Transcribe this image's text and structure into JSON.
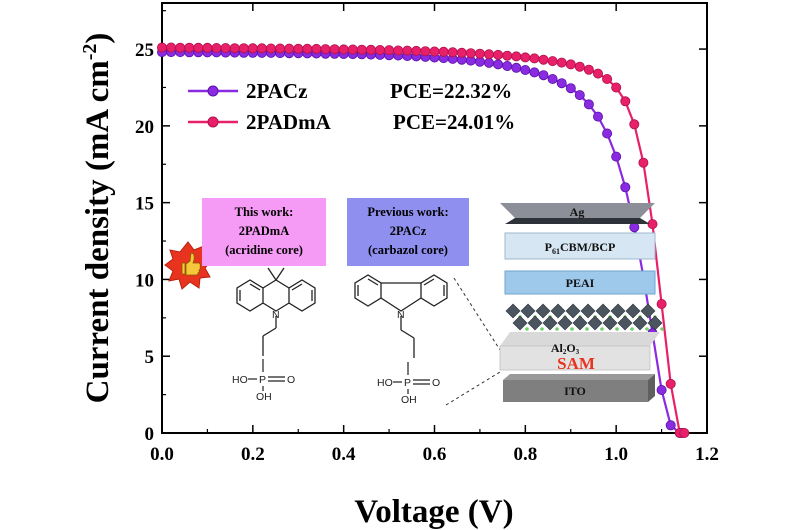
{
  "chart_data": {
    "type": "line",
    "title": "",
    "xlabel": "Voltage (V)",
    "ylabel": "Current density (mA cm",
    "ylabel_sup": "-2",
    "ylabel_close": ")",
    "xlim": [
      0.0,
      1.2
    ],
    "ylim": [
      0,
      28
    ],
    "xticks": [
      0.0,
      0.2,
      0.4,
      0.6,
      0.8,
      1.0,
      1.2
    ],
    "xtick_labels": [
      "0.0",
      "0.2",
      "0.4",
      "0.6",
      "0.8",
      "1.0",
      "1.2"
    ],
    "yticks": [
      0,
      5,
      10,
      15,
      20,
      25
    ],
    "ytick_labels": [
      "0",
      "5",
      "10",
      "15",
      "20",
      "25"
    ],
    "grid": false,
    "legend_position": "top-left",
    "series": [
      {
        "name": "2PACz",
        "pce_label": "PCE=22.32%",
        "color": "#8a2be2",
        "marker": "circle",
        "x": [
          0.0,
          0.02,
          0.04,
          0.06,
          0.08,
          0.1,
          0.12,
          0.14,
          0.16,
          0.18,
          0.2,
          0.22,
          0.24,
          0.26,
          0.28,
          0.3,
          0.32,
          0.34,
          0.36,
          0.38,
          0.4,
          0.42,
          0.44,
          0.46,
          0.48,
          0.5,
          0.52,
          0.54,
          0.56,
          0.58,
          0.6,
          0.62,
          0.64,
          0.66,
          0.68,
          0.7,
          0.72,
          0.74,
          0.76,
          0.78,
          0.8,
          0.82,
          0.84,
          0.86,
          0.88,
          0.9,
          0.92,
          0.94,
          0.96,
          0.98,
          1.0,
          1.02,
          1.04,
          1.06,
          1.08,
          1.1,
          1.12,
          1.14,
          1.145
        ],
        "y": [
          24.8,
          24.8,
          24.8,
          24.79,
          24.79,
          24.78,
          24.78,
          24.77,
          24.77,
          24.76,
          24.76,
          24.75,
          24.75,
          24.74,
          24.73,
          24.73,
          24.72,
          24.71,
          24.7,
          24.69,
          24.68,
          24.67,
          24.66,
          24.64,
          24.62,
          24.6,
          24.58,
          24.55,
          24.52,
          24.49,
          24.45,
          24.41,
          24.36,
          24.31,
          24.25,
          24.18,
          24.1,
          24.0,
          23.9,
          23.78,
          23.64,
          23.48,
          23.3,
          23.05,
          22.78,
          22.45,
          22.0,
          21.4,
          20.6,
          19.5,
          18.0,
          16.0,
          13.4,
          10.2,
          6.5,
          2.8,
          0.5,
          0.0,
          0.0
        ]
      },
      {
        "name": "2PADmA",
        "pce_label": "PCE=24.01%",
        "color": "#e8206a",
        "marker": "circle",
        "x": [
          0.0,
          0.02,
          0.04,
          0.06,
          0.08,
          0.1,
          0.12,
          0.14,
          0.16,
          0.18,
          0.2,
          0.22,
          0.24,
          0.26,
          0.28,
          0.3,
          0.32,
          0.34,
          0.36,
          0.38,
          0.4,
          0.42,
          0.44,
          0.46,
          0.48,
          0.5,
          0.52,
          0.54,
          0.56,
          0.58,
          0.6,
          0.62,
          0.64,
          0.66,
          0.68,
          0.7,
          0.72,
          0.74,
          0.76,
          0.78,
          0.8,
          0.82,
          0.84,
          0.86,
          0.88,
          0.9,
          0.92,
          0.94,
          0.96,
          0.98,
          1.0,
          1.02,
          1.04,
          1.06,
          1.08,
          1.1,
          1.12,
          1.14,
          1.15
        ],
        "y": [
          25.1,
          25.1,
          25.09,
          25.09,
          25.08,
          25.08,
          25.07,
          25.07,
          25.06,
          25.06,
          25.05,
          25.05,
          25.04,
          25.04,
          25.03,
          25.02,
          25.02,
          25.01,
          25.0,
          24.99,
          24.98,
          24.97,
          24.96,
          24.95,
          24.94,
          24.93,
          24.91,
          24.9,
          24.88,
          24.86,
          24.84,
          24.82,
          24.79,
          24.76,
          24.73,
          24.7,
          24.66,
          24.62,
          24.57,
          24.52,
          24.46,
          24.39,
          24.31,
          24.22,
          24.12,
          24.0,
          23.85,
          23.66,
          23.4,
          23.05,
          22.5,
          21.6,
          20.1,
          17.6,
          13.6,
          8.4,
          3.2,
          0.0,
          0.0
        ]
      }
    ]
  },
  "inset": {
    "this_work": {
      "line1": "This work:",
      "line2": "2PADmA",
      "line3": "(acridine core)",
      "bg": "#f59af5"
    },
    "previous_work": {
      "line1": "Previous work:",
      "line2": "2PACz",
      "line3": "(carbazol core)",
      "bg": "#8f8ff0"
    },
    "molecule_group": {
      "oh_label": "HO",
      "p_label": "P",
      "o_label": "O",
      "oh2_label": "OH",
      "n_label": "N"
    },
    "device_layers": {
      "ag": "Ag",
      "etl": "P61CBM/BCP",
      "etl_prefix": "P",
      "etl_sub": "61",
      "etl_suffix": "CBM/BCP",
      "peai": "PEAI",
      "al2o3_prefix": "Al",
      "al2o3_sub1": "2",
      "al2o3_mid": "O",
      "al2o3_sub2": "3",
      "sam": "SAM",
      "ito": "ITO"
    },
    "thumbs_up_icon": "thumbs-up-badge-icon"
  }
}
